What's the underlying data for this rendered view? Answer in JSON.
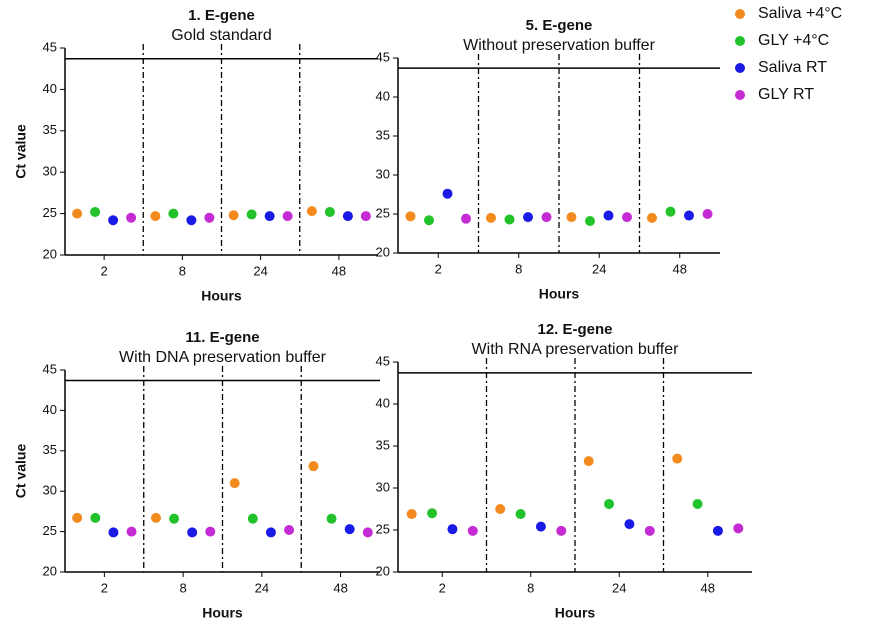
{
  "chart_data": [
    {
      "type": "scatter",
      "title": "1. E-gene",
      "subtitle": "Gold standard",
      "xlabel": "Hours",
      "ylabel": "Ct value",
      "categories": [
        "2",
        "8",
        "24",
        "48"
      ],
      "ylim": [
        20,
        45
      ],
      "yticks": [
        20,
        25,
        30,
        35,
        40,
        45
      ],
      "hline": 43.7,
      "series": [
        {
          "name": "Saliva +4°C",
          "color": "#f28a1e",
          "values": [
            25,
            24.7,
            24.8,
            25.3
          ]
        },
        {
          "name": "GLY +4°C",
          "color": "#22c22a",
          "values": [
            25.2,
            25,
            24.9,
            25.2
          ]
        },
        {
          "name": "Saliva RT",
          "color": "#1a1ae6",
          "values": [
            24.2,
            24.2,
            24.7,
            24.7
          ]
        },
        {
          "name": "GLY RT",
          "color": "#c42bd4",
          "values": [
            24.5,
            24.5,
            24.7,
            24.7
          ]
        }
      ]
    },
    {
      "type": "scatter",
      "title": "5. E-gene",
      "subtitle": "Without preservation buffer",
      "xlabel": "Hours",
      "categories": [
        "2",
        "8",
        "24",
        "48"
      ],
      "ylim": [
        20,
        45
      ],
      "yticks": [
        20,
        25,
        30,
        35,
        40,
        45
      ],
      "hline": 43.7,
      "series": [
        {
          "name": "Saliva +4°C",
          "color": "#f28a1e",
          "values": [
            24.7,
            24.5,
            24.6,
            24.5
          ]
        },
        {
          "name": "GLY +4°C",
          "color": "#22c22a",
          "values": [
            24.2,
            24.3,
            24.1,
            25.3
          ]
        },
        {
          "name": "Saliva RT",
          "color": "#1a1ae6",
          "values": [
            27.6,
            24.6,
            24.8,
            24.8
          ]
        },
        {
          "name": "GLY RT",
          "color": "#c42bd4",
          "values": [
            24.4,
            24.6,
            24.6,
            25
          ]
        }
      ]
    },
    {
      "type": "scatter",
      "title": "11. E-gene",
      "subtitle": "With DNA preservation buffer",
      "xlabel": "Hours",
      "ylabel": "Ct value",
      "categories": [
        "2",
        "8",
        "24",
        "48"
      ],
      "ylim": [
        20,
        45
      ],
      "yticks": [
        20,
        25,
        30,
        35,
        40,
        45
      ],
      "hline": 43.7,
      "series": [
        {
          "name": "Saliva +4°C",
          "color": "#f28a1e",
          "values": [
            26.7,
            26.7,
            31,
            33.1
          ]
        },
        {
          "name": "GLY +4°C",
          "color": "#22c22a",
          "values": [
            26.7,
            26.6,
            26.6,
            26.6
          ]
        },
        {
          "name": "Saliva RT",
          "color": "#1a1ae6",
          "values": [
            24.9,
            24.9,
            24.9,
            25.3
          ]
        },
        {
          "name": "GLY RT",
          "color": "#c42bd4",
          "values": [
            25,
            25,
            25.2,
            24.9
          ]
        }
      ]
    },
    {
      "type": "scatter",
      "title": "12. E-gene",
      "subtitle": "With RNA preservation buffer",
      "xlabel": "Hours",
      "categories": [
        "2",
        "8",
        "24",
        "48"
      ],
      "ylim": [
        20,
        45
      ],
      "yticks": [
        20,
        25,
        30,
        35,
        40,
        45
      ],
      "hline": 43.7,
      "series": [
        {
          "name": "Saliva +4°C",
          "color": "#f28a1e",
          "values": [
            26.9,
            27.5,
            33.2,
            33.5
          ]
        },
        {
          "name": "GLY +4°C",
          "color": "#22c22a",
          "values": [
            27,
            26.9,
            28.1,
            28.1
          ]
        },
        {
          "name": "Saliva RT",
          "color": "#1a1ae6",
          "values": [
            25.1,
            25.4,
            25.7,
            24.9
          ]
        },
        {
          "name": "GLY RT",
          "color": "#c42bd4",
          "values": [
            24.9,
            24.9,
            24.9,
            25.2
          ]
        }
      ]
    }
  ]
}
